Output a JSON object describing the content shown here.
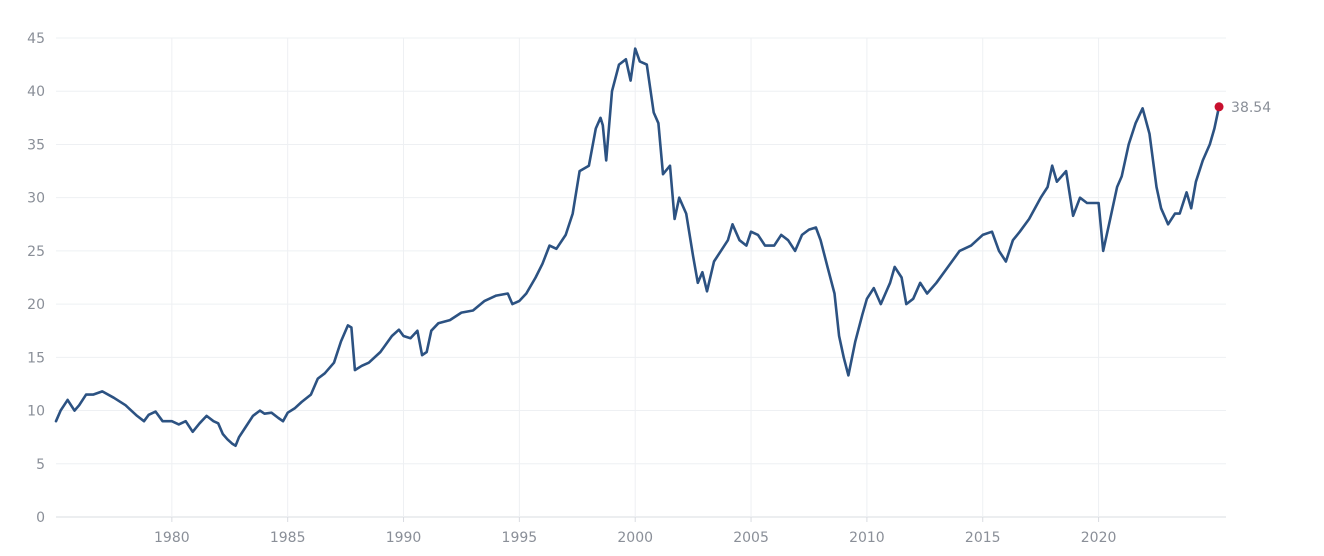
{
  "chart_data": {
    "type": "line",
    "title": "",
    "xlabel": "",
    "ylabel": "",
    "xlim": [
      1975.0,
      2025.5
    ],
    "ylim": [
      0,
      45
    ],
    "y_ticks": [
      0,
      5,
      10,
      15,
      20,
      25,
      30,
      35,
      40,
      45
    ],
    "x_ticks": [
      1980,
      1985,
      1990,
      1995,
      2000,
      2005,
      2010,
      2015,
      2020
    ],
    "grid": true,
    "legend": "none",
    "series": [
      {
        "color": "#2c5282",
        "points": [
          [
            1975.0,
            9.0
          ],
          [
            1975.2,
            10.0
          ],
          [
            1975.5,
            11.0
          ],
          [
            1975.8,
            10.0
          ],
          [
            1976.0,
            10.5
          ],
          [
            1976.3,
            11.5
          ],
          [
            1976.6,
            11.5
          ],
          [
            1977.0,
            11.8
          ],
          [
            1977.5,
            11.2
          ],
          [
            1978.0,
            10.5
          ],
          [
            1978.5,
            9.5
          ],
          [
            1978.8,
            9.0
          ],
          [
            1979.0,
            9.6
          ],
          [
            1979.3,
            9.9
          ],
          [
            1979.6,
            9.0
          ],
          [
            1980.0,
            9.0
          ],
          [
            1980.3,
            8.7
          ],
          [
            1980.6,
            9.0
          ],
          [
            1980.9,
            8.0
          ],
          [
            1981.2,
            8.8
          ],
          [
            1981.5,
            9.5
          ],
          [
            1981.8,
            9.0
          ],
          [
            1982.0,
            8.8
          ],
          [
            1982.2,
            7.8
          ],
          [
            1982.4,
            7.3
          ],
          [
            1982.6,
            6.9
          ],
          [
            1982.75,
            6.7
          ],
          [
            1982.9,
            7.5
          ],
          [
            1983.2,
            8.5
          ],
          [
            1983.5,
            9.5
          ],
          [
            1983.8,
            10.0
          ],
          [
            1984.0,
            9.7
          ],
          [
            1984.3,
            9.8
          ],
          [
            1984.6,
            9.3
          ],
          [
            1984.8,
            9.0
          ],
          [
            1985.0,
            9.8
          ],
          [
            1985.3,
            10.2
          ],
          [
            1985.6,
            10.8
          ],
          [
            1986.0,
            11.5
          ],
          [
            1986.3,
            13.0
          ],
          [
            1986.6,
            13.5
          ],
          [
            1987.0,
            14.5
          ],
          [
            1987.3,
            16.5
          ],
          [
            1987.6,
            18.0
          ],
          [
            1987.75,
            17.8
          ],
          [
            1987.9,
            13.8
          ],
          [
            1988.2,
            14.2
          ],
          [
            1988.5,
            14.5
          ],
          [
            1989.0,
            15.5
          ],
          [
            1989.5,
            17.0
          ],
          [
            1989.8,
            17.6
          ],
          [
            1990.0,
            17.0
          ],
          [
            1990.3,
            16.8
          ],
          [
            1990.6,
            17.5
          ],
          [
            1990.8,
            15.2
          ],
          [
            1991.0,
            15.5
          ],
          [
            1991.2,
            17.5
          ],
          [
            1991.5,
            18.2
          ],
          [
            1992.0,
            18.5
          ],
          [
            1992.5,
            19.2
          ],
          [
            1993.0,
            19.4
          ],
          [
            1993.5,
            20.3
          ],
          [
            1994.0,
            20.8
          ],
          [
            1994.5,
            21.0
          ],
          [
            1994.7,
            20.0
          ],
          [
            1995.0,
            20.3
          ],
          [
            1995.3,
            21.0
          ],
          [
            1995.7,
            22.5
          ],
          [
            1996.0,
            23.8
          ],
          [
            1996.3,
            25.5
          ],
          [
            1996.6,
            25.2
          ],
          [
            1997.0,
            26.5
          ],
          [
            1997.3,
            28.5
          ],
          [
            1997.6,
            32.5
          ],
          [
            1998.0,
            33.0
          ],
          [
            1998.3,
            36.5
          ],
          [
            1998.5,
            37.5
          ],
          [
            1998.6,
            36.8
          ],
          [
            1998.75,
            33.5
          ],
          [
            1999.0,
            40.0
          ],
          [
            1999.3,
            42.5
          ],
          [
            1999.6,
            43.0
          ],
          [
            1999.8,
            41.0
          ],
          [
            2000.0,
            44.0
          ],
          [
            2000.2,
            42.8
          ],
          [
            2000.5,
            42.5
          ],
          [
            2000.8,
            38.0
          ],
          [
            2001.0,
            37.0
          ],
          [
            2001.2,
            32.2
          ],
          [
            2001.5,
            33.0
          ],
          [
            2001.7,
            28.0
          ],
          [
            2001.9,
            30.0
          ],
          [
            2002.2,
            28.5
          ],
          [
            2002.5,
            24.5
          ],
          [
            2002.7,
            22.0
          ],
          [
            2002.9,
            23.0
          ],
          [
            2003.1,
            21.2
          ],
          [
            2003.4,
            24.0
          ],
          [
            2003.7,
            25.0
          ],
          [
            2004.0,
            26.0
          ],
          [
            2004.2,
            27.5
          ],
          [
            2004.5,
            26.0
          ],
          [
            2004.8,
            25.5
          ],
          [
            2005.0,
            26.8
          ],
          [
            2005.3,
            26.5
          ],
          [
            2005.6,
            25.5
          ],
          [
            2006.0,
            25.5
          ],
          [
            2006.3,
            26.5
          ],
          [
            2006.6,
            26.0
          ],
          [
            2006.9,
            25.0
          ],
          [
            2007.2,
            26.5
          ],
          [
            2007.5,
            27.0
          ],
          [
            2007.8,
            27.2
          ],
          [
            2008.0,
            26.0
          ],
          [
            2008.3,
            23.5
          ],
          [
            2008.6,
            21.0
          ],
          [
            2008.8,
            17.0
          ],
          [
            2009.0,
            15.0
          ],
          [
            2009.2,
            13.3
          ],
          [
            2009.5,
            16.5
          ],
          [
            2009.8,
            19.0
          ],
          [
            2010.0,
            20.5
          ],
          [
            2010.3,
            21.5
          ],
          [
            2010.6,
            20.0
          ],
          [
            2011.0,
            22.0
          ],
          [
            2011.2,
            23.5
          ],
          [
            2011.5,
            22.5
          ],
          [
            2011.7,
            20.0
          ],
          [
            2012.0,
            20.5
          ],
          [
            2012.3,
            22.0
          ],
          [
            2012.6,
            21.0
          ],
          [
            2013.0,
            22.0
          ],
          [
            2013.5,
            23.5
          ],
          [
            2014.0,
            25.0
          ],
          [
            2014.5,
            25.5
          ],
          [
            2015.0,
            26.5
          ],
          [
            2015.4,
            26.8
          ],
          [
            2015.7,
            25.0
          ],
          [
            2016.0,
            24.0
          ],
          [
            2016.3,
            26.0
          ],
          [
            2016.6,
            26.8
          ],
          [
            2017.0,
            28.0
          ],
          [
            2017.5,
            30.0
          ],
          [
            2017.8,
            31.0
          ],
          [
            2018.0,
            33.0
          ],
          [
            2018.2,
            31.5
          ],
          [
            2018.6,
            32.5
          ],
          [
            2018.9,
            28.3
          ],
          [
            2019.2,
            30.0
          ],
          [
            2019.5,
            29.5
          ],
          [
            2019.8,
            29.5
          ],
          [
            2020.0,
            29.5
          ],
          [
            2020.2,
            25.0
          ],
          [
            2020.5,
            28.0
          ],
          [
            2020.8,
            31.0
          ],
          [
            2021.0,
            32.0
          ],
          [
            2021.3,
            35.0
          ],
          [
            2021.6,
            37.0
          ],
          [
            2021.9,
            38.4
          ],
          [
            2022.2,
            36.0
          ],
          [
            2022.5,
            31.0
          ],
          [
            2022.7,
            29.0
          ],
          [
            2022.9,
            28.0
          ],
          [
            2023.0,
            27.5
          ],
          [
            2023.3,
            28.5
          ],
          [
            2023.5,
            28.5
          ],
          [
            2023.8,
            30.5
          ],
          [
            2024.0,
            29.0
          ],
          [
            2024.2,
            31.5
          ],
          [
            2024.5,
            33.5
          ],
          [
            2024.8,
            35.0
          ],
          [
            2025.0,
            36.5
          ],
          [
            2025.2,
            38.54
          ]
        ]
      }
    ],
    "last_point": {
      "x": 2025.2,
      "y": 38.54,
      "label": "38.54",
      "color": "#c8102e"
    }
  }
}
